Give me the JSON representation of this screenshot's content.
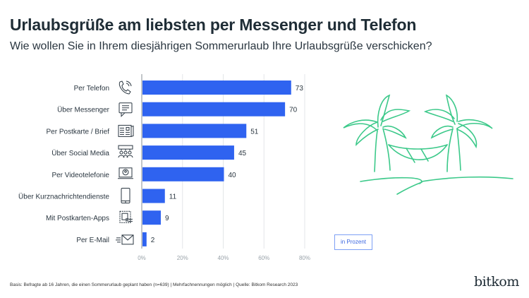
{
  "header": {
    "title": "Urlaubsgrüße am liebsten per Messenger und Telefon",
    "subtitle": "Wie wollen Sie in Ihrem diesjährigen Sommerurlaub Ihre Urlaubsgrüße verschicken?"
  },
  "chart_data": {
    "type": "bar",
    "orientation": "horizontal",
    "categories": [
      "Per Telefon",
      "Über Messenger",
      "Per Postkarte / Brief",
      "Über Social Media",
      "Per Videotelefonie",
      "Über Kurznachrichtendienste",
      "Mit Postkarten-Apps",
      "Per E-Mail"
    ],
    "icons": [
      "phone-icon",
      "chat-bubble-icon",
      "postcard-icon",
      "social-media-icon",
      "video-call-icon",
      "smartphone-icon",
      "postcard-app-icon",
      "email-icon"
    ],
    "values": [
      73,
      70,
      51,
      45,
      40,
      11,
      9,
      2
    ],
    "xlim": [
      0,
      80
    ],
    "xticks": [
      "0%",
      "20%",
      "40%",
      "60%",
      "80%"
    ],
    "unit_label": "in Prozent",
    "grid": true,
    "bar_color": "#2f63f0"
  },
  "illustration_color": "#3cc98a",
  "footer": {
    "source": "Basis: Befragte ab 16 Jahren, die einen Sommerurlaub geplant haben (n=639) | Mehrfachnennungen möglich | Quelle: Bitkom Research 2023",
    "logo": "bitkom"
  }
}
